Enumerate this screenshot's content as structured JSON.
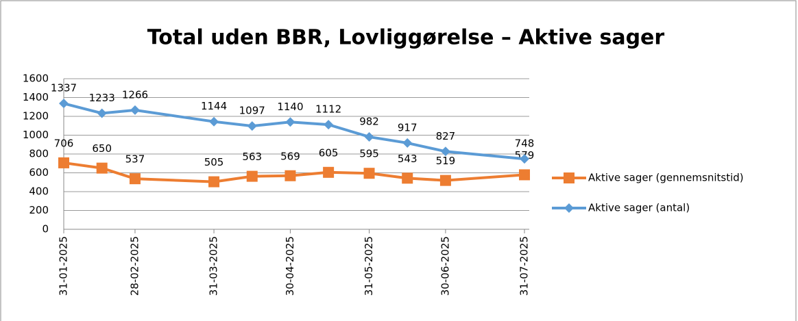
{
  "chart_data": {
    "type": "line",
    "title": "Total uden BBR, Lovliggørelse – Aktive sager",
    "x": [
      "31-01-2025",
      "15-02-2025",
      "28-02-2025",
      "31-03-2025",
      "15-04-2025",
      "30-04-2025",
      "15-05-2025",
      "31-05-2025",
      "15-06-2025",
      "30-06-2025",
      "31-07-2025"
    ],
    "xlim": [
      "31-01-2025",
      "31-07-2025"
    ],
    "xticks": [
      "31-01-2025",
      "28-02-2025",
      "31-03-2025",
      "30-04-2025",
      "31-05-2025",
      "30-06-2025",
      "31-07-2025"
    ],
    "series": [
      {
        "name": "Aktive sager (gennemsnitstid)",
        "color": "#ED7D31",
        "marker": "square",
        "values": [
          706,
          650,
          537,
          505,
          563,
          569,
          605,
          595,
          543,
          519,
          579
        ]
      },
      {
        "name": "Aktive sager (antal)",
        "color": "#5B9BD5",
        "marker": "diamond",
        "values": [
          1337,
          1233,
          1266,
          1144,
          1097,
          1140,
          1112,
          982,
          917,
          827,
          748
        ]
      }
    ],
    "ylim": [
      0,
      1600
    ],
    "yticks": [
      0,
      200,
      400,
      600,
      800,
      1000,
      1200,
      1400,
      1600
    ],
    "grid": true,
    "legend": "right"
  }
}
